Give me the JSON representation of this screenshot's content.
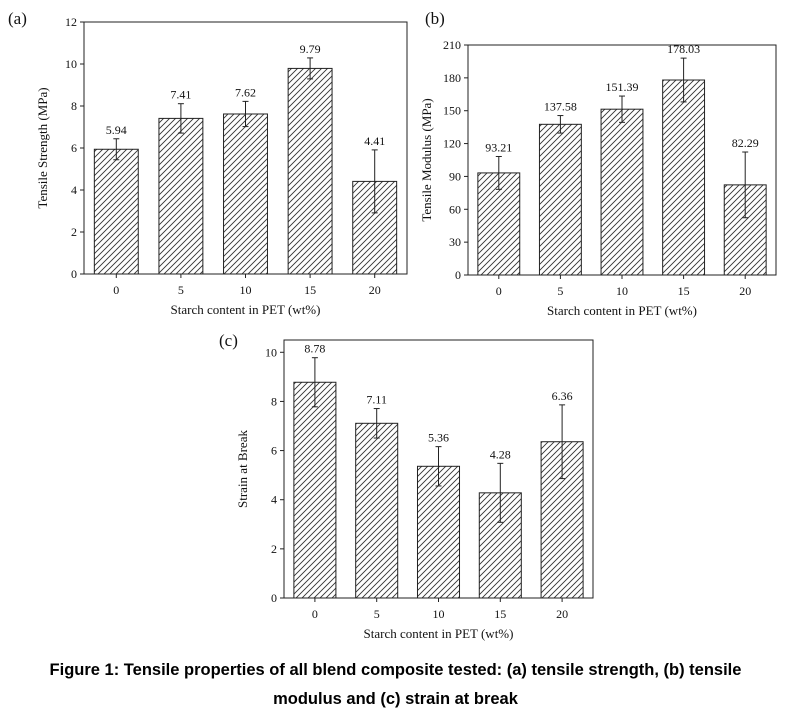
{
  "chart_data": [
    {
      "type": "bar",
      "panel_label": "(a)",
      "categories": [
        "0",
        "5",
        "10",
        "15",
        "20"
      ],
      "values": [
        5.94,
        7.41,
        7.62,
        9.79,
        4.41
      ],
      "value_labels": [
        "5.94",
        "7.41",
        "7.62",
        "9.79",
        "4.41"
      ],
      "errors": [
        0.5,
        0.7,
        0.6,
        0.5,
        1.5
      ],
      "xlabel": "Starch content in PET (wt%)",
      "ylabel": "Tensile Strength (MPa)",
      "ylim": [
        0,
        12
      ],
      "yticks": [
        "0",
        "2",
        "4",
        "6",
        "8",
        "10",
        "12"
      ]
    },
    {
      "type": "bar",
      "panel_label": "(b)",
      "categories": [
        "0",
        "5",
        "10",
        "15",
        "20"
      ],
      "values": [
        93.21,
        137.58,
        151.39,
        178.03,
        82.29
      ],
      "value_labels": [
        "93.21",
        "137.58",
        "151.39",
        "178.03",
        "82.29"
      ],
      "errors": [
        15,
        8,
        12,
        20,
        30
      ],
      "xlabel": "Starch content in PET (wt%)",
      "ylabel": "Tensile Modulus (MPa)",
      "ylim": [
        0,
        210
      ],
      "yticks": [
        "0",
        "30",
        "60",
        "90",
        "120",
        "150",
        "180",
        "210"
      ]
    },
    {
      "type": "bar",
      "panel_label": "(c)",
      "categories": [
        "0",
        "5",
        "10",
        "15",
        "20"
      ],
      "values": [
        8.78,
        7.11,
        5.36,
        4.28,
        6.36
      ],
      "value_labels": [
        "8.78",
        "7.11",
        "5.36",
        "4.28",
        "6.36"
      ],
      "errors": [
        1.0,
        0.6,
        0.8,
        1.2,
        1.5
      ],
      "xlabel": "Starch content in PET (wt%)",
      "ylabel": "Strain at Break",
      "ylim": [
        0,
        10.5
      ],
      "yticks": [
        "0",
        "2",
        "4",
        "6",
        "8",
        "10"
      ]
    }
  ],
  "caption": {
    "line1": "Figure 1: Tensile properties of all blend composite tested: (a) tensile strength, (b) tensile",
    "line2": "modulus and (c) strain at break"
  }
}
